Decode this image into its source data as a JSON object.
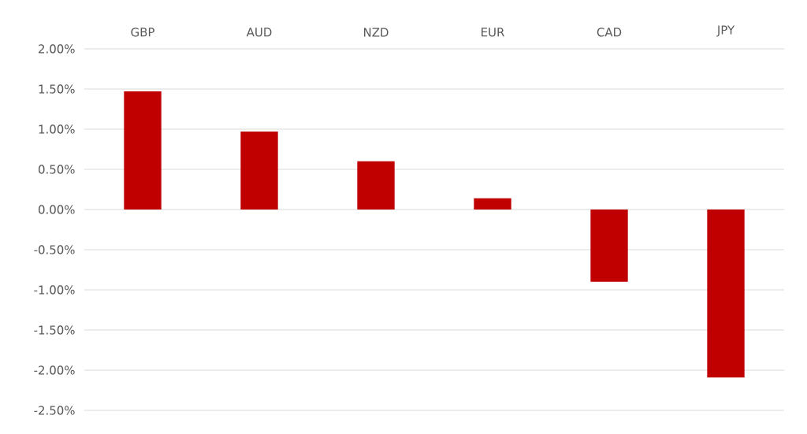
{
  "chart_data": {
    "type": "bar",
    "categories": [
      "GBP",
      "AUD",
      "NZD",
      "EUR",
      "CAD",
      "JPY"
    ],
    "values": [
      1.47,
      0.97,
      0.6,
      0.14,
      -0.9,
      -2.09
    ],
    "color": "#c00000",
    "ylim": [
      -2.5,
      2.0
    ],
    "yticks": [
      {
        "value": -2.5,
        "label": "-2.50%"
      },
      {
        "value": -2.0,
        "label": "-2.00%"
      },
      {
        "value": -1.5,
        "label": "-1.50%"
      },
      {
        "value": -1.0,
        "label": "-1.00%"
      },
      {
        "value": -0.5,
        "label": "-0.50%"
      },
      {
        "value": 0,
        "label": "0.00%"
      },
      {
        "value": 0.5,
        "label": "0.50%"
      },
      {
        "value": 1.0,
        "label": "1.00%"
      },
      {
        "value": 1.5,
        "label": "1.50%"
      },
      {
        "value": 2.0,
        "label": "2.00%"
      }
    ],
    "grid": "y"
  }
}
